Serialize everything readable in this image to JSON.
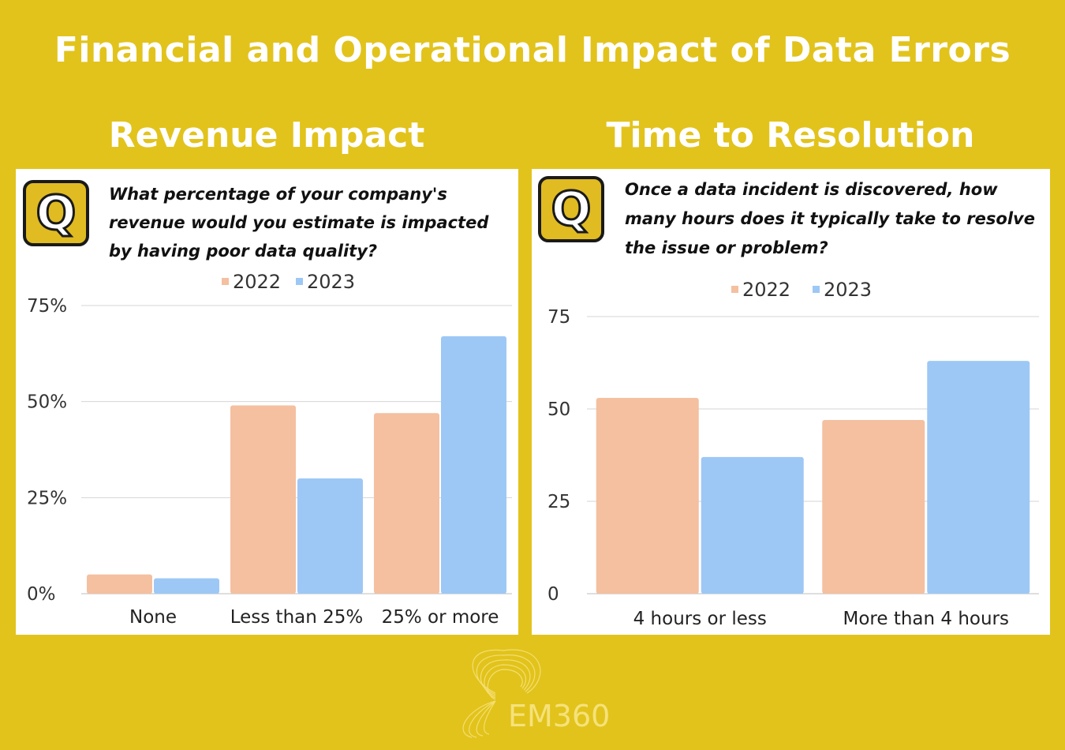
{
  "header": {
    "title": "Financial and Operational Impact of Data Errors",
    "left_heading": "Revenue Impact",
    "right_heading": "Time to Resolution"
  },
  "badge_letter": "Q",
  "logo": {
    "text": "EM360"
  },
  "colors": {
    "background": "#E2C31C",
    "series_2022": "#F4C0A0",
    "series_2023": "#9DC8F5"
  },
  "chart_data": [
    {
      "type": "bar",
      "title": "What percentage of your company's revenue would you estimate is impacted by having poor data quality?",
      "categories": [
        "None",
        "Less than 25%",
        "25% or more"
      ],
      "series": [
        {
          "name": "2022",
          "values": [
            5,
            49,
            47
          ]
        },
        {
          "name": "2023",
          "values": [
            4,
            30,
            67
          ]
        }
      ],
      "ylim": [
        0,
        75
      ],
      "yticks": [
        0,
        25,
        50,
        75
      ],
      "ytick_labels": [
        "0%",
        "25%",
        "50%",
        "75%"
      ],
      "legend": "top",
      "grid": true
    },
    {
      "type": "bar",
      "title": "Once a data incident is discovered, how many hours does it typically take to resolve the issue or problem?",
      "categories": [
        "4 hours or less",
        "More than 4 hours"
      ],
      "series": [
        {
          "name": "2022",
          "values": [
            53,
            47
          ]
        },
        {
          "name": "2023",
          "values": [
            37,
            63
          ]
        }
      ],
      "ylim": [
        0,
        75
      ],
      "yticks": [
        0,
        25,
        50,
        75
      ],
      "ytick_labels": [
        "0",
        "25",
        "50",
        "75"
      ],
      "legend": "top",
      "grid": true
    }
  ]
}
